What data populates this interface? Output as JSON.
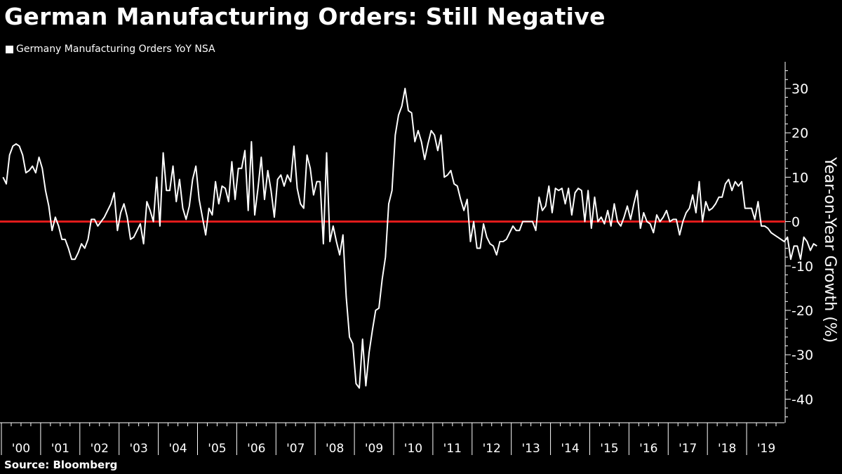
{
  "title": "German Manufacturing Orders: Still Negative",
  "legend": "Germany Manufacturing Orders YoY NSA",
  "source": "Source: Bloomberg",
  "colors": {
    "background": "#000000",
    "line": "#ffffff",
    "zero_line": "#e01b1b",
    "axis": "#ffffff"
  },
  "chart_data": {
    "type": "line",
    "title": "German Manufacturing Orders: Still Negative",
    "xlabel": "",
    "ylabel": "Year-on-Year Growth (%)",
    "ylim": [
      -45,
      36
    ],
    "yticks": [
      30,
      20,
      10,
      0,
      -10,
      -20,
      -30,
      -40
    ],
    "ytick_labels": [
      "30",
      "20",
      "10",
      "0",
      "-10",
      "-20",
      "-30",
      "-40"
    ],
    "xlim": [
      2000.0,
      2019.75
    ],
    "xticks": [
      2000,
      2001,
      2002,
      2003,
      2004,
      2005,
      2006,
      2007,
      2008,
      2009,
      2010,
      2011,
      2012,
      2013,
      2014,
      2015,
      2016,
      2017,
      2018,
      2019
    ],
    "xtick_labels": [
      "'00",
      "'01",
      "'02",
      "'03",
      "'04",
      "'05",
      "'06",
      "'07",
      "'08",
      "'09",
      "'10",
      "'11",
      "'12",
      "'13",
      "'14",
      "'15",
      "'16",
      "'17",
      "'18",
      "'19"
    ],
    "reference_line": 0,
    "series": [
      {
        "name": "Germany Manufacturing Orders YoY NSA",
        "start": 2000.0,
        "step_months": 1,
        "values": [
          10.0,
          8.5,
          15.0,
          17.0,
          17.5,
          17.0,
          15.0,
          11.0,
          11.5,
          12.5,
          11.0,
          14.5,
          12.0,
          7.0,
          3.5,
          -2.0,
          1.0,
          -1.0,
          -4.0,
          -4.0,
          -6.0,
          -8.5,
          -8.5,
          -7.0,
          -5.0,
          -6.0,
          -4.0,
          0.5,
          0.5,
          -1.0,
          0.0,
          1.0,
          2.5,
          4.0,
          6.5,
          -2.0,
          2.0,
          4.0,
          1.0,
          -4.0,
          -3.5,
          -2.0,
          -0.5,
          -5.0,
          4.5,
          2.5,
          0.0,
          10.0,
          -1.0,
          15.5,
          7.0,
          7.0,
          12.5,
          4.5,
          9.5,
          3.0,
          0.5,
          3.5,
          9.5,
          12.5,
          5.0,
          1.0,
          -3.0,
          3.0,
          1.5,
          9.0,
          4.0,
          8.0,
          7.5,
          4.5,
          13.5,
          5.0,
          12.0,
          12.0,
          16.0,
          2.5,
          18.0,
          1.5,
          7.5,
          14.5,
          5.0,
          11.5,
          7.0,
          1.0,
          9.5,
          10.5,
          8.0,
          10.5,
          9.0,
          17.0,
          7.5,
          4.0,
          3.0,
          15.0,
          12.0,
          6.0,
          9.0,
          9.0,
          -5.0,
          15.5,
          -4.5,
          -1.0,
          -4.5,
          -7.5,
          -3.0,
          -17.0,
          -26.0,
          -27.5,
          -36.5,
          -37.5,
          -26.5,
          -37.0,
          -29.5,
          -24.5,
          -20.0,
          -19.5,
          -13.0,
          -8.0,
          4.0,
          7.0,
          19.5,
          24.0,
          26.0,
          30.0,
          25.0,
          24.5,
          18.0,
          20.5,
          18.0,
          14.0,
          17.5,
          20.5,
          19.5,
          16.0,
          19.5,
          10.0,
          10.5,
          11.5,
          8.5,
          8.0,
          5.0,
          2.5,
          5.0,
          -4.5,
          0.0,
          -6.0,
          -6.0,
          -0.5,
          -3.5,
          -5.0,
          -5.5,
          -7.5,
          -4.5,
          -4.5,
          -4.0,
          -2.5,
          -1.0,
          -2.0,
          -2.0,
          0.0,
          0.0,
          0.0,
          0.0,
          -2.0,
          5.5,
          2.5,
          3.5,
          8.0,
          2.0,
          7.5,
          7.0,
          7.5,
          4.0,
          7.5,
          1.5,
          6.5,
          7.5,
          7.0,
          0.0,
          7.0,
          -1.5,
          5.5,
          0.0,
          1.0,
          -0.5,
          2.5,
          -1.0,
          4.0,
          0.0,
          -1.0,
          1.0,
          3.5,
          0.5,
          4.0,
          7.0,
          -1.5,
          2.0,
          0.0,
          -0.5,
          -2.5,
          1.5,
          0.0,
          1.0,
          2.5,
          0.0,
          0.5,
          0.5,
          -3.0,
          0.0,
          2.0,
          3.0,
          6.0,
          2.0,
          9.0,
          0.0,
          4.5,
          2.5,
          3.0,
          4.0,
          5.5,
          5.5,
          8.5,
          9.5,
          7.0,
          9.0,
          8.0,
          9.0,
          3.0,
          3.0,
          3.0,
          0.5,
          4.5,
          -1.0,
          -1.0,
          -1.5,
          -2.5,
          -3.0,
          -3.5,
          -4.0,
          -4.5,
          -3.5,
          -8.5,
          -5.5,
          -5.5,
          -8.5,
          -3.5,
          -4.5,
          -6.5,
          -5.0,
          -5.5
        ]
      }
    ]
  }
}
